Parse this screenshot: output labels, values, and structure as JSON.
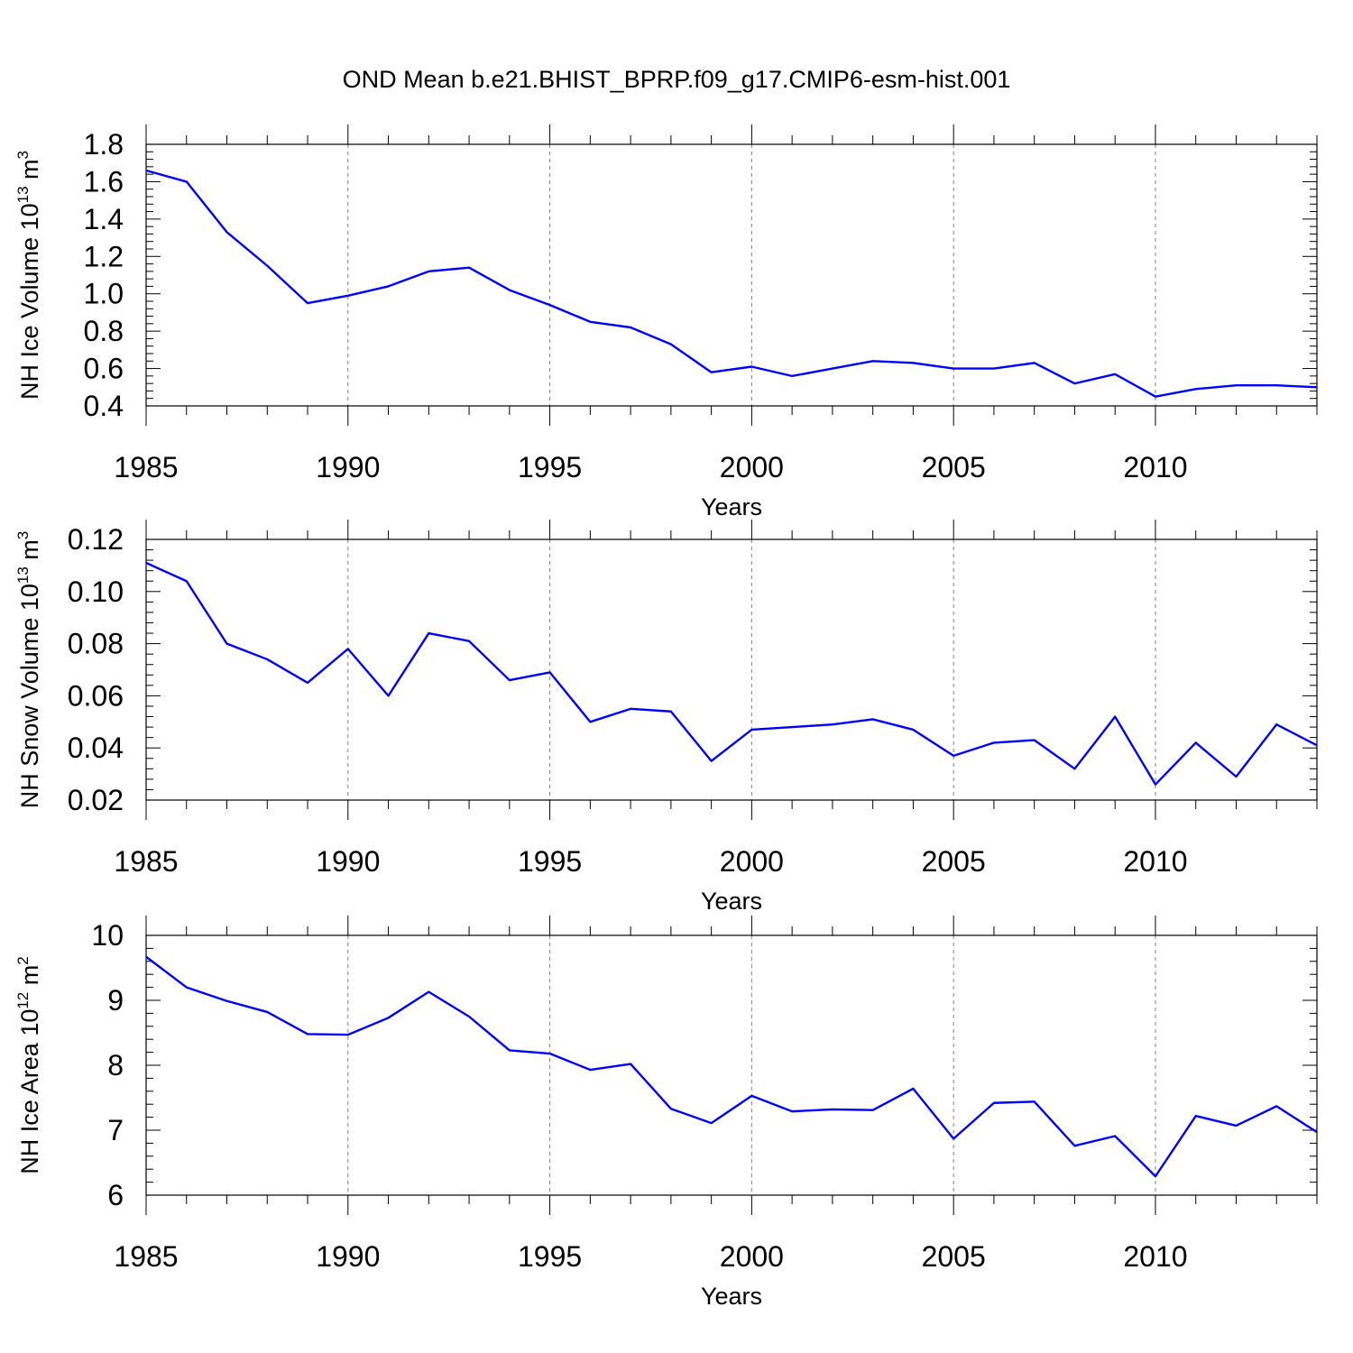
{
  "title": "OND Mean b.e21.BHIST_BPRP.f09_g17.CMIP6-esm-hist.001",
  "line_color": "#0000ff",
  "grid_color": "#808080",
  "chart_data": [
    {
      "type": "line",
      "title": "",
      "xlabel": "Years",
      "ylabel": {
        "prefix": "NH Ice Volume 10",
        "exp1": "13",
        "mid": " m",
        "exp2": "3"
      },
      "xlim": [
        1985,
        2014
      ],
      "ylim": [
        0.4,
        1.8
      ],
      "yticks": [
        0.4,
        0.6,
        0.8,
        1.0,
        1.2,
        1.4,
        1.6,
        1.8
      ],
      "ytick_labels": [
        "0.4",
        "0.6",
        "0.8",
        "1.0",
        "1.2",
        "1.4",
        "1.6",
        "1.8"
      ],
      "xticks": [
        1985,
        1990,
        1995,
        2000,
        2005,
        2010
      ],
      "xtick_labels": [
        "1985",
        "1990",
        "1995",
        "2000",
        "2005",
        "2010"
      ],
      "grid": "vertical dashed at major x ticks",
      "x": [
        1985,
        1986,
        1987,
        1988,
        1989,
        1990,
        1991,
        1992,
        1993,
        1994,
        1995,
        1996,
        1997,
        1998,
        1999,
        2000,
        2001,
        2002,
        2003,
        2004,
        2005,
        2006,
        2007,
        2008,
        2009,
        2010,
        2011,
        2012,
        2013,
        2014
      ],
      "values": [
        1.66,
        1.6,
        1.33,
        1.15,
        0.95,
        0.99,
        1.04,
        1.12,
        1.14,
        1.02,
        0.94,
        0.85,
        0.82,
        0.73,
        0.58,
        0.61,
        0.56,
        0.6,
        0.64,
        0.63,
        0.6,
        0.6,
        0.63,
        0.52,
        0.57,
        0.45,
        0.49,
        0.51,
        0.51,
        0.5
      ]
    },
    {
      "type": "line",
      "title": "",
      "xlabel": "Years",
      "ylabel": {
        "prefix": "NH Snow Volume 10",
        "exp1": "13",
        "mid": " m",
        "exp2": "3"
      },
      "xlim": [
        1985,
        2014
      ],
      "ylim": [
        0.02,
        0.12
      ],
      "yticks": [
        0.02,
        0.04,
        0.06,
        0.08,
        0.1,
        0.12
      ],
      "ytick_labels": [
        "0.02",
        "0.04",
        "0.06",
        "0.08",
        "0.10",
        "0.12"
      ],
      "xticks": [
        1985,
        1990,
        1995,
        2000,
        2005,
        2010
      ],
      "xtick_labels": [
        "1985",
        "1990",
        "1995",
        "2000",
        "2005",
        "2010"
      ],
      "grid": "vertical dashed at major x ticks",
      "x": [
        1985,
        1986,
        1987,
        1988,
        1989,
        1990,
        1991,
        1992,
        1993,
        1994,
        1995,
        1996,
        1997,
        1998,
        1999,
        2000,
        2001,
        2002,
        2003,
        2004,
        2005,
        2006,
        2007,
        2008,
        2009,
        2010,
        2011,
        2012,
        2013,
        2014
      ],
      "values": [
        0.111,
        0.104,
        0.08,
        0.074,
        0.065,
        0.078,
        0.06,
        0.084,
        0.081,
        0.066,
        0.069,
        0.05,
        0.055,
        0.054,
        0.035,
        0.047,
        0.048,
        0.049,
        0.051,
        0.047,
        0.037,
        0.042,
        0.043,
        0.032,
        0.052,
        0.026,
        0.042,
        0.029,
        0.049,
        0.041
      ]
    },
    {
      "type": "line",
      "title": "",
      "xlabel": "Years",
      "ylabel": {
        "prefix": "NH Ice Area 10",
        "exp1": "12",
        "mid": " m",
        "exp2": "2"
      },
      "xlim": [
        1985,
        2014
      ],
      "ylim": [
        6,
        10
      ],
      "yticks": [
        6,
        7,
        8,
        9,
        10
      ],
      "ytick_labels": [
        "6",
        "7",
        "8",
        "9",
        "10"
      ],
      "xticks": [
        1985,
        1990,
        1995,
        2000,
        2005,
        2010
      ],
      "xtick_labels": [
        "1985",
        "1990",
        "1995",
        "2000",
        "2005",
        "2010"
      ],
      "grid": "vertical dashed at major x ticks",
      "x": [
        1985,
        1986,
        1987,
        1988,
        1989,
        1990,
        1991,
        1992,
        1993,
        1994,
        1995,
        1996,
        1997,
        1998,
        1999,
        2000,
        2001,
        2002,
        2003,
        2004,
        2005,
        2006,
        2007,
        2008,
        2009,
        2010,
        2011,
        2012,
        2013,
        2014
      ],
      "values": [
        9.67,
        9.2,
        8.99,
        8.82,
        8.48,
        8.47,
        8.73,
        9.13,
        8.75,
        8.23,
        8.18,
        7.93,
        8.02,
        7.33,
        7.11,
        7.53,
        7.29,
        7.32,
        7.31,
        7.64,
        6.87,
        7.42,
        7.44,
        6.76,
        6.91,
        6.29,
        7.22,
        7.07,
        7.37,
        6.97
      ]
    }
  ]
}
